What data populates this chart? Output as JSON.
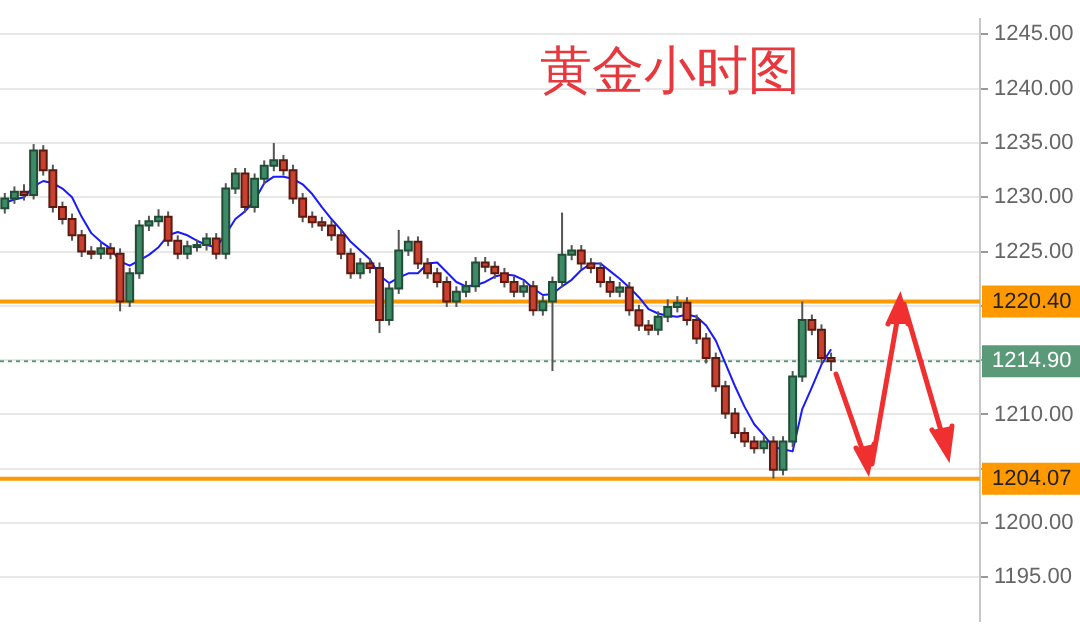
{
  "chart_data": {
    "type": "candlestick",
    "title": "黄金小时图",
    "categories": [
      null,
      null,
      null,
      null,
      null,
      null,
      null,
      null,
      null,
      null,
      null,
      null,
      null,
      null,
      null,
      null,
      null,
      null,
      null,
      null,
      null,
      null,
      null,
      null,
      null,
      null,
      null,
      null,
      null,
      null,
      null,
      null,
      null,
      null,
      null,
      null,
      null,
      null,
      null,
      null,
      null,
      null,
      null,
      null,
      null,
      null,
      null,
      null,
      null,
      null,
      null,
      null,
      null,
      null,
      null,
      null,
      null,
      null,
      null,
      null,
      null,
      null,
      null,
      null,
      null,
      null,
      null,
      null,
      null,
      null,
      null,
      null,
      null,
      null,
      null,
      null,
      null,
      null,
      null,
      null,
      null,
      null,
      null,
      null,
      null,
      null,
      null,
      null,
      null,
      null,
      null,
      null,
      null,
      null,
      null,
      null,
      null,
      null,
      null,
      null,
      null,
      null
    ],
    "ohlc": [
      [
        1229.0,
        1230.4,
        1228.5,
        1229.9
      ],
      [
        1229.9,
        1231.0,
        1229.4,
        1230.5
      ],
      [
        1230.5,
        1231.2,
        1229.7,
        1230.2
      ],
      [
        1230.2,
        1234.9,
        1229.8,
        1234.3
      ],
      [
        1234.3,
        1234.8,
        1232.0,
        1232.5
      ],
      [
        1232.5,
        1233.0,
        1228.6,
        1229.1
      ],
      [
        1229.1,
        1229.6,
        1227.5,
        1228.0
      ],
      [
        1228.0,
        1228.5,
        1226.0,
        1226.5
      ],
      [
        1226.5,
        1227.0,
        1224.5,
        1225.0
      ],
      [
        1225.0,
        1225.5,
        1224.3,
        1224.8
      ],
      [
        1224.8,
        1225.8,
        1224.3,
        1225.3
      ],
      [
        1225.3,
        1225.8,
        1224.3,
        1224.8
      ],
      [
        1224.8,
        1225.3,
        1219.5,
        1220.4
      ],
      [
        1220.4,
        1223.5,
        1219.9,
        1223.0
      ],
      [
        1223.0,
        1227.9,
        1222.5,
        1227.4
      ],
      [
        1227.4,
        1228.3,
        1226.9,
        1227.8
      ],
      [
        1227.8,
        1228.9,
        1227.3,
        1228.2
      ],
      [
        1228.2,
        1228.7,
        1225.5,
        1226.0
      ],
      [
        1226.0,
        1226.5,
        1224.3,
        1224.8
      ],
      [
        1224.8,
        1226.0,
        1224.3,
        1225.5
      ],
      [
        1225.5,
        1226.1,
        1225.0,
        1225.6
      ],
      [
        1225.6,
        1226.7,
        1225.1,
        1226.2
      ],
      [
        1226.2,
        1226.7,
        1224.3,
        1224.8
      ],
      [
        1224.8,
        1231.3,
        1224.3,
        1230.8
      ],
      [
        1230.8,
        1232.7,
        1230.3,
        1232.2
      ],
      [
        1232.2,
        1232.7,
        1228.6,
        1229.1
      ],
      [
        1229.1,
        1232.2,
        1228.6,
        1231.7
      ],
      [
        1231.7,
        1233.4,
        1231.2,
        1232.9
      ],
      [
        1232.9,
        1235.0,
        1232.4,
        1233.4
      ],
      [
        1233.4,
        1233.9,
        1232.0,
        1232.5
      ],
      [
        1232.5,
        1233.0,
        1229.4,
        1229.9
      ],
      [
        1229.9,
        1230.4,
        1227.7,
        1228.2
      ],
      [
        1228.2,
        1228.7,
        1227.2,
        1227.7
      ],
      [
        1227.7,
        1228.2,
        1226.9,
        1227.4
      ],
      [
        1227.4,
        1227.9,
        1226.0,
        1226.5
      ],
      [
        1226.5,
        1227.0,
        1224.3,
        1224.8
      ],
      [
        1224.8,
        1225.3,
        1222.5,
        1223.0
      ],
      [
        1223.0,
        1224.4,
        1222.5,
        1223.9
      ],
      [
        1223.9,
        1224.4,
        1223.0,
        1223.5
      ],
      [
        1223.5,
        1224.0,
        1217.5,
        1218.7
      ],
      [
        1218.7,
        1222.1,
        1218.2,
        1221.6
      ],
      [
        1221.6,
        1227.0,
        1221.1,
        1225.1
      ],
      [
        1225.1,
        1226.4,
        1224.6,
        1225.9
      ],
      [
        1225.9,
        1226.4,
        1223.4,
        1223.9
      ],
      [
        1223.9,
        1224.4,
        1222.5,
        1223.0
      ],
      [
        1223.0,
        1223.5,
        1221.7,
        1222.2
      ],
      [
        1222.2,
        1222.7,
        1219.9,
        1220.4
      ],
      [
        1220.4,
        1221.8,
        1219.9,
        1221.3
      ],
      [
        1221.3,
        1222.3,
        1220.8,
        1221.8
      ],
      [
        1221.8,
        1224.5,
        1221.3,
        1224.0
      ],
      [
        1224.0,
        1224.5,
        1223.1,
        1223.6
      ],
      [
        1223.6,
        1224.1,
        1222.5,
        1223.0
      ],
      [
        1223.0,
        1223.5,
        1221.7,
        1222.2
      ],
      [
        1222.2,
        1222.7,
        1220.8,
        1221.3
      ],
      [
        1221.3,
        1222.3,
        1220.8,
        1221.8
      ],
      [
        1221.8,
        1222.3,
        1219.1,
        1219.6
      ],
      [
        1219.6,
        1220.9,
        1219.1,
        1220.4
      ],
      [
        1220.4,
        1222.7,
        1214.0,
        1222.2
      ],
      [
        1222.2,
        1228.6,
        1221.7,
        1224.7
      ],
      [
        1224.7,
        1225.6,
        1224.2,
        1225.1
      ],
      [
        1225.1,
        1225.6,
        1223.4,
        1223.9
      ],
      [
        1223.9,
        1224.4,
        1223.0,
        1223.5
      ],
      [
        1223.5,
        1224.0,
        1221.7,
        1222.2
      ],
      [
        1222.2,
        1222.7,
        1220.8,
        1221.3
      ],
      [
        1221.3,
        1222.2,
        1220.8,
        1221.7
      ],
      [
        1221.7,
        1222.2,
        1219.1,
        1219.6
      ],
      [
        1219.6,
        1220.1,
        1217.7,
        1218.2
      ],
      [
        1218.2,
        1218.7,
        1217.3,
        1217.8
      ],
      [
        1217.8,
        1219.5,
        1217.3,
        1219.0
      ],
      [
        1219.0,
        1220.6,
        1218.5,
        1219.9
      ],
      [
        1219.9,
        1220.9,
        1219.4,
        1220.3
      ],
      [
        1220.3,
        1220.8,
        1218.2,
        1218.7
      ],
      [
        1218.7,
        1219.2,
        1216.5,
        1217.0
      ],
      [
        1217.0,
        1217.5,
        1214.7,
        1215.2
      ],
      [
        1215.2,
        1215.7,
        1212.1,
        1212.6
      ],
      [
        1212.6,
        1213.1,
        1209.6,
        1210.1
      ],
      [
        1210.1,
        1210.6,
        1207.8,
        1208.3
      ],
      [
        1208.3,
        1208.8,
        1207.0,
        1207.5
      ],
      [
        1207.5,
        1208.0,
        1206.4,
        1206.9
      ],
      [
        1206.9,
        1208.0,
        1206.4,
        1207.5
      ],
      [
        1207.5,
        1208.0,
        1204.1,
        1204.9
      ],
      [
        1204.9,
        1208.0,
        1204.4,
        1207.5
      ],
      [
        1207.5,
        1214.0,
        1207.0,
        1213.5
      ],
      [
        1213.5,
        1220.4,
        1213.0,
        1218.7
      ],
      [
        1218.7,
        1219.2,
        1217.3,
        1217.8
      ],
      [
        1217.8,
        1218.3,
        1214.7,
        1215.2
      ],
      [
        1215.2,
        1215.7,
        1214.0,
        1214.9
      ],
      null,
      null,
      null,
      null,
      null,
      null,
      null,
      null,
      null,
      null,
      null,
      null,
      null,
      null,
      null
    ],
    "series": [
      {
        "type": "line",
        "color": "#1a1aff",
        "values": [
          1229.5,
          1229.8,
          1230.0,
          1231.0,
          1231.5,
          1231.3,
          1230.8,
          1230.0,
          1228.2,
          1226.7,
          1225.9,
          1225.3,
          1224.1,
          1223.7,
          1224.2,
          1224.7,
          1225.4,
          1226.5,
          1226.8,
          1226.5,
          1226.0,
          1225.6,
          1225.4,
          1226.6,
          1228.0,
          1228.7,
          1229.7,
          1231.3,
          1231.9,
          1231.9,
          1231.7,
          1231.2,
          1230.3,
          1229.1,
          1228.0,
          1227.0,
          1225.9,
          1225.1,
          1224.3,
          1222.8,
          1222.1,
          1222.6,
          1223.0,
          1223.0,
          1223.9,
          1224.0,
          1223.1,
          1222.2,
          1221.8,
          1221.9,
          1222.2,
          1222.7,
          1222.9,
          1222.8,
          1222.4,
          1221.6,
          1221.0,
          1221.1,
          1221.8,
          1222.4,
          1223.3,
          1223.9,
          1223.9,
          1223.2,
          1222.5,
          1221.7,
          1220.8,
          1219.7,
          1219.3,
          1219.1,
          1219.0,
          1219.2,
          1219.0,
          1218.2,
          1216.8,
          1214.7,
          1212.6,
          1210.7,
          1209.1,
          1208.1,
          1207.0,
          1206.8,
          1206.6,
          1210.5,
          1212.5,
          1214.6,
          1216.0,
          null,
          null,
          null,
          null,
          null,
          null,
          null,
          null,
          null,
          null,
          null,
          null,
          null,
          null,
          null
        ]
      }
    ],
    "ylim": [
      1191,
      1246.4
    ],
    "yticks": [
      {
        "value": 1195,
        "label": "1195.00"
      },
      {
        "value": 1200,
        "label": "1200.00"
      },
      {
        "value": 1205,
        "label": null
      },
      {
        "value": 1210,
        "label": "1210.00"
      },
      {
        "value": 1215,
        "label": null
      },
      {
        "value": 1220,
        "label": null
      },
      {
        "value": 1225,
        "label": "1225.00"
      },
      {
        "value": 1230,
        "label": "1230.00"
      },
      {
        "value": 1235,
        "label": "1235.00"
      },
      {
        "value": 1240,
        "label": "1240.00"
      },
      {
        "value": 1245,
        "label": "1245.00"
      }
    ],
    "ref_lines": [
      {
        "axis": "y",
        "value": 1220.4,
        "label": "1220.40",
        "color": "#ff9900",
        "line_style": "solid"
      },
      {
        "axis": "y",
        "value": 1214.9,
        "label": "1214.90",
        "color": "#5a9a78",
        "line_style": "dotted"
      },
      {
        "axis": "y",
        "value": 1204.07,
        "label": "1204.07",
        "color": "#ff9900",
        "line_style": "solid"
      }
    ],
    "grid": "y",
    "tick_labels": "y",
    "legend": false
  }
}
